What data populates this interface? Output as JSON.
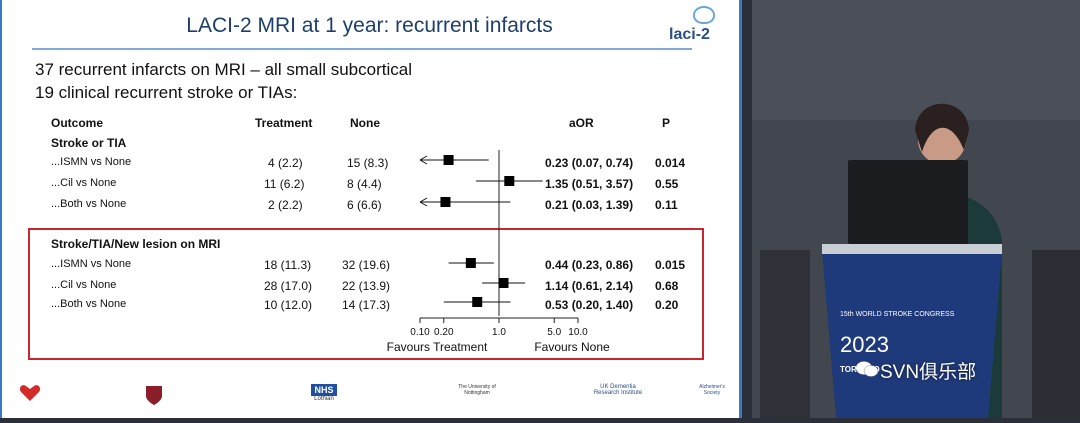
{
  "slide": {
    "title": "LACI-2 MRI at 1 year: recurrent infarcts",
    "brand": "laci-2",
    "line1": "37 recurrent infarcts on MRI – all small subcortical",
    "line2": "19 clinical recurrent stroke or TIAs:"
  },
  "table": {
    "headers": {
      "outcome": "Outcome",
      "treatment": "Treatment",
      "none": "None",
      "aor": "aOR",
      "p": "P"
    },
    "groups": [
      {
        "title": "Stroke or TIA",
        "rows": [
          {
            "label": "...ISMN vs None",
            "treatment": "4 (2.2)",
            "none": "15 (8.3)",
            "aor": "0.23 (0.07, 0.74)",
            "p": "0.014"
          },
          {
            "label": "...Cil vs None",
            "treatment": "11 (6.2)",
            "none": "8 (4.4)",
            "aor": "1.35 (0.51, 3.57)",
            "p": "0.55"
          },
          {
            "label": "...Both vs None",
            "treatment": "2 (2.2)",
            "none": "6 (6.6)",
            "aor": "0.21 (0.03, 1.39)",
            "p": "0.11"
          }
        ]
      },
      {
        "title": "Stroke/TIA/New lesion on MRI",
        "rows": [
          {
            "label": "...ISMN vs None",
            "treatment": "18 (11.3)",
            "none": "32 (19.6)",
            "aor": "0.44 (0.23, 0.86)",
            "p": "0.015"
          },
          {
            "label": "...Cil vs None",
            "treatment": "28 (17.0)",
            "none": "22 (13.9)",
            "aor": "1.14 (0.61, 2.14)",
            "p": "0.68"
          },
          {
            "label": "...Both vs None",
            "treatment": "10 (12.0)",
            "none": "14 (17.3)",
            "aor": "0.53 (0.20, 1.40)",
            "p": "0.20"
          }
        ]
      }
    ]
  },
  "chart_data": {
    "type": "forest",
    "xscale": "log",
    "xlim": [
      0.1,
      10.0
    ],
    "ticks": [
      "0.10",
      "0.20",
      "1.0",
      "5.0",
      "10.0"
    ],
    "tick_values": [
      0.1,
      0.2,
      1.0,
      5.0,
      10.0
    ],
    "reference_line": 1.0,
    "left_label": "Favours Treatment",
    "right_label": "Favours None",
    "points": [
      {
        "or": 0.23,
        "lo": 0.07,
        "hi": 0.74
      },
      {
        "or": 1.35,
        "lo": 0.51,
        "hi": 3.57
      },
      {
        "or": 0.21,
        "lo": 0.03,
        "hi": 1.39
      },
      {
        "or": 0.44,
        "lo": 0.23,
        "hi": 0.86
      },
      {
        "or": 1.14,
        "lo": 0.61,
        "hi": 2.14
      },
      {
        "or": 0.53,
        "lo": 0.2,
        "hi": 1.4
      }
    ]
  },
  "footer": {
    "bhf": "British Heart Foundation",
    "nhs": "NHS",
    "nhs_sub": "Lothian",
    "nottingham": "The University of Nottingham",
    "ukdri": "UK Dementia Research Institute",
    "alz": "Alzheimer's Society"
  },
  "video": {
    "podium_text": "15th WORLD STROKE CONGRESS",
    "year": "2023",
    "city": "TORONTO",
    "watermark": "SVN俱乐部"
  },
  "colors": {
    "accent": "#3a7bc8",
    "box": "#c8252c",
    "title": "#1f3f6b"
  }
}
